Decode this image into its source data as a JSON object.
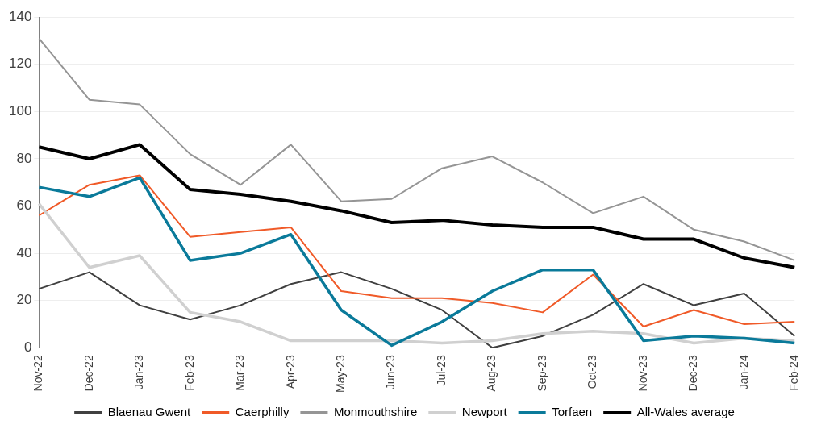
{
  "chart_data": {
    "type": "line",
    "categories": [
      "Nov-22",
      "Dec-22",
      "Jan-23",
      "Feb-23",
      "Mar-23",
      "Apr-23",
      "May-23",
      "Jun-23",
      "Jul-23",
      "Aug-23",
      "Sep-23",
      "Oct-23",
      "Nov-23",
      "Dec-23",
      "Jan-24",
      "Feb-24"
    ],
    "series": [
      {
        "name": "Blaenau Gwent",
        "color": "#404040",
        "values": [
          25,
          32,
          18,
          12,
          18,
          27,
          32,
          25,
          16,
          0,
          5,
          14,
          27,
          18,
          23,
          5
        ]
      },
      {
        "name": "Caerphilly",
        "color": "#f05a28",
        "values": [
          56,
          69,
          73,
          47,
          49,
          51,
          24,
          21,
          21,
          19,
          15,
          31,
          9,
          16,
          10,
          11
        ]
      },
      {
        "name": "Monmouthshire",
        "color": "#959595",
        "values": [
          131,
          105,
          103,
          82,
          69,
          86,
          62,
          63,
          76,
          81,
          70,
          57,
          64,
          50,
          45,
          37
        ]
      },
      {
        "name": "Newport",
        "color": "#d0d0d0",
        "values": [
          61,
          34,
          39,
          15,
          11,
          3,
          3,
          3,
          2,
          3,
          6,
          7,
          6,
          2,
          4,
          3
        ]
      },
      {
        "name": "Torfaen",
        "color": "#0a7a9a",
        "values": [
          68,
          64,
          72,
          37,
          40,
          48,
          16,
          1,
          11,
          24,
          33,
          33,
          3,
          5,
          4,
          2
        ]
      },
      {
        "name": "All-Wales average",
        "color": "#000000",
        "values": [
          85,
          80,
          86,
          67,
          65,
          62,
          58,
          53,
          54,
          52,
          51,
          51,
          46,
          46,
          38,
          34
        ]
      }
    ],
    "ylim": [
      0,
      140
    ],
    "yticks": [
      0,
      20,
      40,
      60,
      80,
      100,
      120,
      140
    ],
    "grid": "y",
    "legend": "bottom",
    "marker": "none",
    "line_style": "solid"
  }
}
